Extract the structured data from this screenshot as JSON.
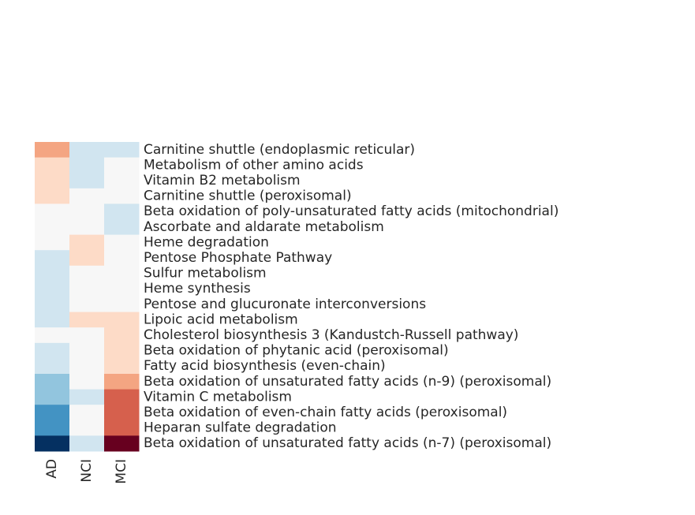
{
  "chart_data": {
    "type": "heatmap",
    "title": "",
    "xlabel": "",
    "ylabel": "",
    "columns": [
      "AD",
      "NCI",
      "MCI"
    ],
    "rows": [
      "Carnitine shuttle (endoplasmic reticular)",
      "Metabolism of other amino acids",
      "Vitamin B2 metabolism",
      "Carnitine shuttle (peroxisomal)",
      "Beta oxidation of poly-unsaturated fatty acids (mitochondrial)",
      "Ascorbate and aldarate metabolism",
      "Heme degradation",
      "Pentose Phosphate Pathway",
      "Sulfur metabolism",
      "Heme synthesis",
      "Pentose and glucuronate interconversions",
      "Lipoic acid metabolism",
      "Cholesterol biosynthesis 3 (Kandustch-Russell pathway)",
      "Beta oxidation of phytanic acid (peroxisomal)",
      "Fatty acid biosynthesis (even-chain)",
      "Beta oxidation of unsaturated fatty acids (n-9) (peroxisomal)",
      "Vitamin C metabolism",
      "Beta oxidation of even-chain fatty acids (peroxisomal)",
      "Heparan sulfate degradation",
      "Beta oxidation of unsaturated fatty acids (n-7) (peroxisomal)"
    ],
    "values": [
      [
        2,
        -1,
        -1
      ],
      [
        1,
        -1,
        0
      ],
      [
        1,
        -1,
        0
      ],
      [
        1,
        0,
        0
      ],
      [
        0,
        0,
        -1
      ],
      [
        0,
        0,
        -1
      ],
      [
        0,
        1,
        0
      ],
      [
        -1,
        1,
        0
      ],
      [
        -1,
        0,
        0
      ],
      [
        -1,
        0,
        0
      ],
      [
        -1,
        0,
        0
      ],
      [
        -1,
        1,
        1
      ],
      [
        0,
        0,
        1
      ],
      [
        -1,
        0,
        1
      ],
      [
        -1,
        0,
        1
      ],
      [
        -2,
        0,
        2
      ],
      [
        -2,
        -1,
        3
      ],
      [
        -3,
        0,
        3
      ],
      [
        -3,
        0,
        3
      ],
      [
        -4,
        -1,
        4
      ]
    ],
    "colormap": "RdBu_r",
    "colors": {
      "-4": "#053061",
      "-3": "#4393c3",
      "-2": "#92c5de",
      "-1": "#d1e5f0",
      "0": "#f7f7f7",
      "1": "#fddbc7",
      "2": "#f4a582",
      "3": "#d6604d",
      "4": "#67001f"
    },
    "label_color": "#262626"
  }
}
